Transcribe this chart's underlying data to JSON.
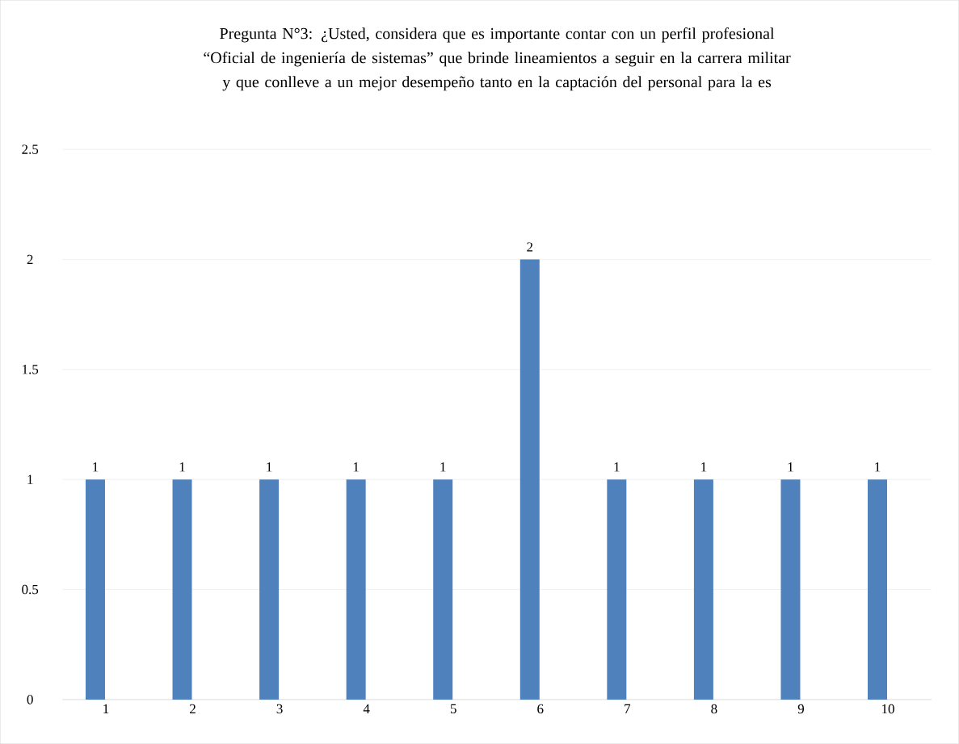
{
  "chart_data": {
    "type": "bar",
    "title": "Pregunta N°3: ¿Usted, considera que es importante contar con un perfil profesional “Oficial de ingeniería de sistemas” que brinde lineamientos a seguir en la carrera militar y que conlleve a un mejor desempeño tanto en la captación del personal para la es",
    "categories": [
      "1",
      "2",
      "3",
      "4",
      "5",
      "6",
      "7",
      "8",
      "9",
      "10"
    ],
    "values": [
      1,
      1,
      1,
      1,
      1,
      2,
      1,
      1,
      1,
      1
    ],
    "color": "#4f81bd",
    "ylim": [
      0,
      2.5
    ],
    "yticks": [
      0,
      0.5,
      1,
      1.5,
      2,
      2.5
    ],
    "grid": "y",
    "data_labels": true
  }
}
